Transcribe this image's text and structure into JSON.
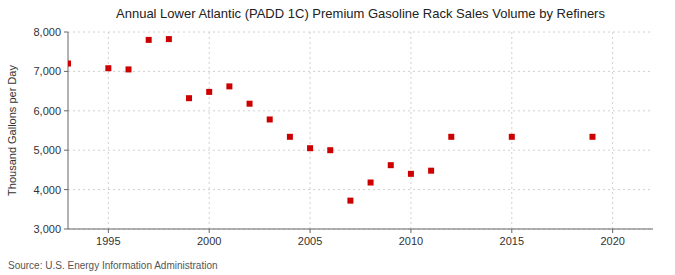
{
  "chart_data": {
    "type": "scatter",
    "title": "Annual Lower Atlantic (PADD 1C) Premium Gasoline Rack Sales Volume by Refiners",
    "ylabel": "Thousand Gallons per Day",
    "annotations": [
      "Source: U.S. Energy Information Administration"
    ],
    "x": [
      1993,
      1995,
      1996,
      1997,
      1998,
      1999,
      2000,
      2001,
      2002,
      2003,
      2004,
      2005,
      2006,
      2007,
      2008,
      2009,
      2010,
      2011,
      2012,
      2015,
      2019
    ],
    "values": [
      7200,
      7080,
      7050,
      7800,
      7820,
      6320,
      6480,
      6620,
      6180,
      5780,
      5340,
      5050,
      5000,
      3720,
      4180,
      4620,
      4400,
      4480,
      5340,
      5340,
      5340
    ],
    "color": "#cc0000",
    "marker": "square",
    "xlim": [
      1993,
      2022
    ],
    "ylim": [
      3000,
      8000
    ],
    "xticks": [
      1995,
      2000,
      2005,
      2010,
      2015,
      2020
    ],
    "yticks": [
      {
        "value": 3000,
        "label": "3,000"
      },
      {
        "value": 4000,
        "label": "4,000"
      },
      {
        "value": 5000,
        "label": "5,000"
      },
      {
        "value": 6000,
        "label": "6,000"
      },
      {
        "value": 7000,
        "label": "7,000"
      },
      {
        "value": 8000,
        "label": "8,000"
      }
    ],
    "grid": true
  }
}
